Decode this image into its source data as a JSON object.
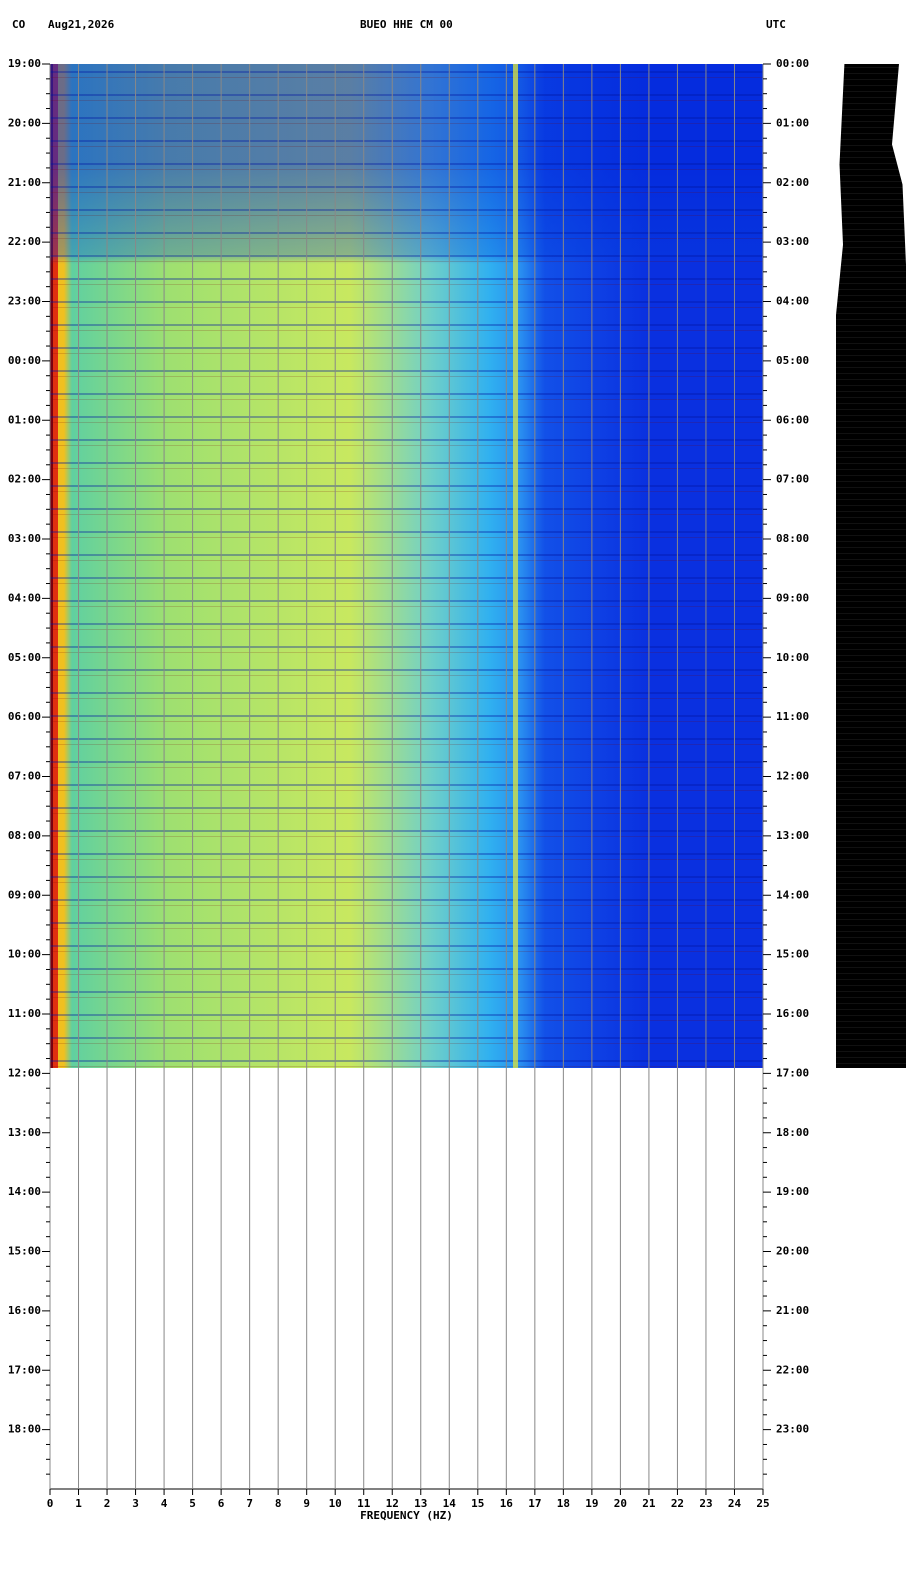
{
  "header": {
    "network": "CO",
    "date": "Aug21,2026",
    "station": "BUEO HHE CM 00",
    "timezone": "UTC"
  },
  "chart_data": {
    "type": "spectrogram",
    "xlabel": "FREQUENCY (HZ)",
    "xlim": [
      0,
      25
    ],
    "xticks": [
      0,
      1,
      2,
      3,
      4,
      5,
      6,
      7,
      8,
      9,
      10,
      11,
      12,
      13,
      14,
      15,
      16,
      17,
      18,
      19,
      20,
      21,
      22,
      23,
      24,
      25
    ],
    "ylim": [
      0,
      24
    ],
    "yticks": [
      {
        "value": 0,
        "label": "19:00"
      },
      {
        "value": 1,
        "label": "20:00"
      },
      {
        "value": 2,
        "label": "21:00"
      },
      {
        "value": 3,
        "label": "22:00"
      },
      {
        "value": 4,
        "label": "23:00"
      },
      {
        "value": 5,
        "label": "00:00"
      },
      {
        "value": 6,
        "label": "01:00"
      },
      {
        "value": 7,
        "label": "02:00"
      },
      {
        "value": 8,
        "label": "03:00"
      },
      {
        "value": 9,
        "label": "04:00"
      },
      {
        "value": 10,
        "label": "05:00"
      },
      {
        "value": 11,
        "label": "06:00"
      },
      {
        "value": 12,
        "label": "07:00"
      },
      {
        "value": 13,
        "label": "08:00"
      },
      {
        "value": 14,
        "label": "09:00"
      },
      {
        "value": 15,
        "label": "10:00"
      },
      {
        "value": 16,
        "label": "11:00"
      },
      {
        "value": 17,
        "label": "12:00"
      },
      {
        "value": 18,
        "label": "13:00"
      },
      {
        "value": 19,
        "label": "14:00"
      },
      {
        "value": 20,
        "label": "15:00"
      },
      {
        "value": 21,
        "label": "16:00"
      },
      {
        "value": 22,
        "label": "17:00"
      },
      {
        "value": 23,
        "label": "18:00"
      }
    ],
    "y2lim": [
      0,
      24
    ],
    "y2ticks": [
      {
        "value": 0,
        "label": "00:00"
      },
      {
        "value": 1,
        "label": "01:00"
      },
      {
        "value": 2,
        "label": "02:00"
      },
      {
        "value": 3,
        "label": "03:00"
      },
      {
        "value": 4,
        "label": "04:00"
      },
      {
        "value": 5,
        "label": "05:00"
      },
      {
        "value": 6,
        "label": "06:00"
      },
      {
        "value": 7,
        "label": "07:00"
      },
      {
        "value": 8,
        "label": "08:00"
      },
      {
        "value": 9,
        "label": "09:00"
      },
      {
        "value": 10,
        "label": "10:00"
      },
      {
        "value": 11,
        "label": "11:00"
      },
      {
        "value": 12,
        "label": "12:00"
      },
      {
        "value": 13,
        "label": "13:00"
      },
      {
        "value": 14,
        "label": "14:00"
      },
      {
        "value": 15,
        "label": "15:00"
      },
      {
        "value": 16,
        "label": "16:00"
      },
      {
        "value": 17,
        "label": "17:00"
      },
      {
        "value": 18,
        "label": "18:00"
      },
      {
        "value": 19,
        "label": "19:00"
      },
      {
        "value": 20,
        "label": "20:00"
      },
      {
        "value": 21,
        "label": "21:00"
      },
      {
        "value": 22,
        "label": "22:00"
      },
      {
        "value": 23,
        "label": "23:00"
      }
    ],
    "grid": true
  }
}
